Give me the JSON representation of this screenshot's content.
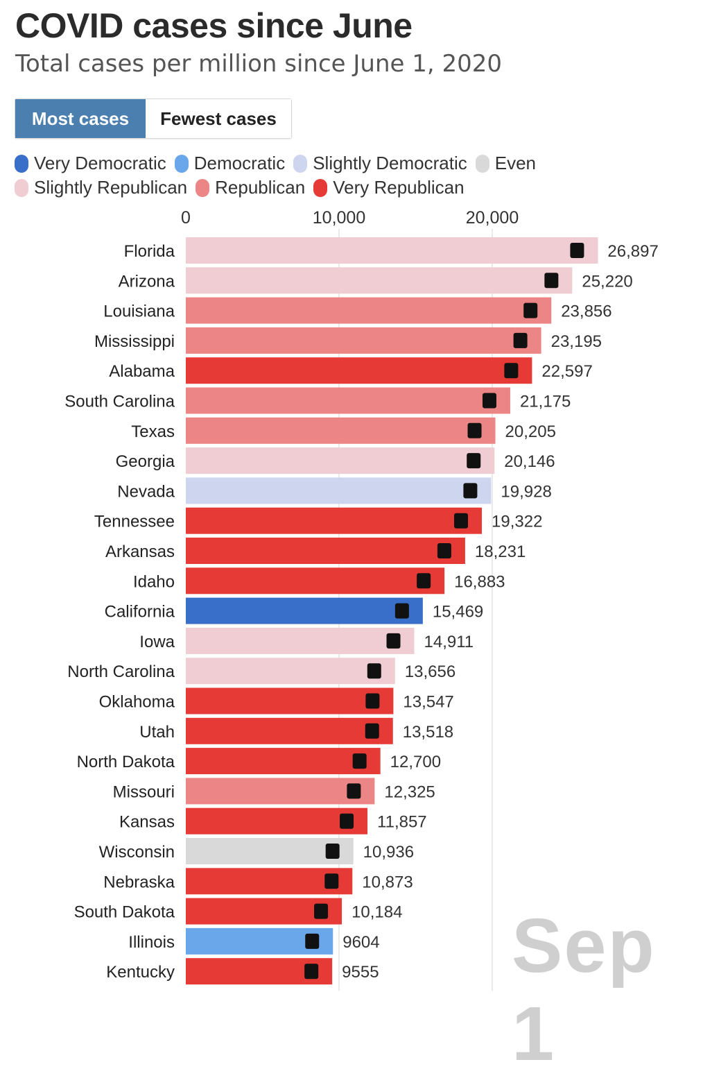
{
  "title": "COVID cases since June",
  "subtitle": "Total cases per million since June 1, 2020",
  "toggle": {
    "most_label": "Most cases",
    "fewest_label": "Fewest cases"
  },
  "legend": {
    "row1": [
      {
        "label": "Very Democratic",
        "color": "#3a6fc9"
      },
      {
        "label": "Democratic",
        "color": "#6aa6ea"
      },
      {
        "label": "Slightly Democratic",
        "color": "#cdd6ee"
      },
      {
        "label": "Even",
        "color": "#d9d9d9"
      }
    ],
    "row2": [
      {
        "label": "Slightly Republican",
        "color": "#efcdd2"
      },
      {
        "label": "Republican",
        "color": "#ec8585"
      },
      {
        "label": "Very Republican",
        "color": "#e63a36"
      }
    ]
  },
  "date_label": "Sep 1",
  "chart_data": {
    "type": "bar",
    "orientation": "horizontal",
    "xlim": [
      0,
      27000
    ],
    "x_ticks": [
      0,
      10000,
      20000
    ],
    "x_tick_labels": [
      "0",
      "10,000",
      "20,000"
    ],
    "categories": [
      "Florida",
      "Arizona",
      "Louisiana",
      "Mississippi",
      "Alabama",
      "South Carolina",
      "Texas",
      "Georgia",
      "Nevada",
      "Tennessee",
      "Arkansas",
      "Idaho",
      "California",
      "Iowa",
      "North Carolina",
      "Oklahoma",
      "Utah",
      "North Dakota",
      "Missouri",
      "Kansas",
      "Wisconsin",
      "Nebraska",
      "South Dakota",
      "Illinois",
      "Kentucky"
    ],
    "values": [
      26897,
      25220,
      23856,
      23195,
      22597,
      21175,
      20205,
      20146,
      19928,
      19322,
      18231,
      16883,
      15469,
      14911,
      13656,
      13547,
      13518,
      12700,
      12325,
      11857,
      10936,
      10873,
      10184,
      9604,
      9555
    ],
    "value_labels": [
      "26,897",
      "25,220",
      "23,856",
      "23,195",
      "22,597",
      "21,175",
      "20,205",
      "20,146",
      "19,928",
      "19,322",
      "18,231",
      "16,883",
      "15,469",
      "14,911",
      "13,656",
      "13,547",
      "13,518",
      "12,700",
      "12,325",
      "11,857",
      "10,936",
      "10,873",
      "10,184",
      "9604",
      "9555"
    ],
    "leanings": [
      "Slightly Republican",
      "Slightly Republican",
      "Republican",
      "Republican",
      "Very Republican",
      "Republican",
      "Republican",
      "Slightly Republican",
      "Slightly Democratic",
      "Very Republican",
      "Very Republican",
      "Very Republican",
      "Very Democratic",
      "Slightly Republican",
      "Slightly Republican",
      "Very Republican",
      "Very Republican",
      "Very Republican",
      "Republican",
      "Very Republican",
      "Even",
      "Very Republican",
      "Very Republican",
      "Democratic",
      "Very Republican"
    ],
    "colors": {
      "Very Democratic": "#3a6fc9",
      "Democratic": "#6aa6ea",
      "Slightly Democratic": "#cdd6ee",
      "Even": "#d9d9d9",
      "Slightly Republican": "#efcdd2",
      "Republican": "#ec8585",
      "Very Republican": "#e63a36"
    },
    "grid": true,
    "legend_position": "top"
  }
}
